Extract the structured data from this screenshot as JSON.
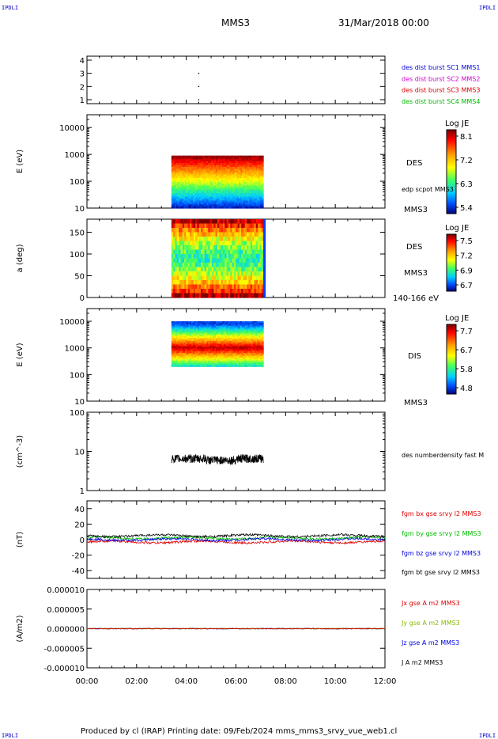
{
  "header": {
    "corner_left": "IPDLI",
    "corner_right": "IPDLI",
    "mission": "MMS3",
    "datetime": "31/Mar/2018 00:00"
  },
  "footer": {
    "text": "Produced by cl (IRAP)   Printing date: 09/Feb/2024   mms_mms3_srvy_vue_web1.cl",
    "corner_left": "IPDLI",
    "corner_right": "IPDLI"
  },
  "colors": {
    "blue": "#0000dd",
    "magenta": "#cc00cc",
    "red": "#dd0000",
    "green": "#00bb00",
    "black": "#000000"
  },
  "chart_data": [
    {
      "type": "scatter",
      "ylabel": "",
      "yticks": [
        "1",
        "2",
        "3",
        "4"
      ],
      "ylim": [
        0.7,
        4.3
      ],
      "legend": [
        {
          "label": "des dist burst SC1 MMS1",
          "color": "#0000dd"
        },
        {
          "label": "des dist burst SC2 MMS2",
          "color": "#cc00cc"
        },
        {
          "label": "des dist burst SC3 MMS3",
          "color": "#dd0000"
        },
        {
          "label": "des dist burst SC4 MMS4",
          "color": "#00bb00"
        }
      ],
      "points": [
        {
          "x": 4.5,
          "y": 1
        },
        {
          "x": 4.5,
          "y": 2
        },
        {
          "x": 4.5,
          "y": 3
        }
      ]
    },
    {
      "type": "heatmap",
      "ylabel": "E (eV)",
      "yscale": "log",
      "yticks": [
        "10",
        "100",
        "1000",
        "10000"
      ],
      "ylim": [
        10,
        30000
      ],
      "data_x": [
        3.4,
        7.1
      ],
      "data_y": [
        10,
        900
      ],
      "side_label": "DES",
      "side_note": "edp scpot MMS3",
      "side_bottom": "MMS3",
      "colorbar": {
        "title": "Log JE",
        "ticks": [
          "8.1",
          "7.2",
          "6.3",
          "5.4"
        ]
      }
    },
    {
      "type": "heatmap",
      "ylabel": "a (deg)",
      "yticks": [
        "0",
        "50",
        "100",
        "150"
      ],
      "ylim": [
        0,
        180
      ],
      "data_x": [
        3.4,
        7.1
      ],
      "side_label": "DES",
      "side_mid": "MMS3",
      "side_bottom": "140-166 eV",
      "colorbar": {
        "title": "Log JE",
        "ticks": [
          "7.5",
          "7.2",
          "6.9",
          "6.7"
        ]
      }
    },
    {
      "type": "heatmap",
      "ylabel": "E (eV)",
      "yscale": "log",
      "yticks": [
        "10",
        "100",
        "1000",
        "10000"
      ],
      "ylim": [
        10,
        30000
      ],
      "data_x": [
        3.4,
        7.1
      ],
      "data_y": [
        200,
        10000
      ],
      "side_label": "DIS",
      "side_bottom": "MMS3",
      "colorbar": {
        "title": "Log JE",
        "ticks": [
          "7.7",
          "6.7",
          "5.8",
          "4.8"
        ]
      }
    },
    {
      "type": "line",
      "ylabel": "(cm^-3)",
      "yscale": "log",
      "yticks": [
        "1",
        "10",
        "100"
      ],
      "ylim": [
        1,
        100
      ],
      "series": [
        {
          "name": "des numberdensity fast M",
          "color": "#000000",
          "x_range": [
            3.4,
            7.1
          ],
          "level": 6.5
        }
      ]
    },
    {
      "type": "line",
      "ylabel": "(nT)",
      "yticks": [
        "-40",
        "-20",
        "0",
        "20",
        "40"
      ],
      "ylim": [
        -50,
        50
      ],
      "series": [
        {
          "name": "fgm bx gse srvy l2 MMS3",
          "color": "#dd0000",
          "level": -3
        },
        {
          "name": "fgm by gse srvy l2 MMS3",
          "color": "#00bb00",
          "level": 2
        },
        {
          "name": "fgm bz gse srvy l2 MMS3",
          "color": "#0000dd",
          "level": 0
        },
        {
          "name": "fgm bt gse srvy l2 MMS3",
          "color": "#000000",
          "level": 5
        }
      ]
    },
    {
      "type": "line",
      "ylabel": "(A/m2)",
      "yticks": [
        "-0.000010",
        "-0.000005",
        "0.000000",
        "0.000005",
        "0.000010"
      ],
      "ylim": [
        -1e-05,
        1e-05
      ],
      "xlabels": [
        "00:00",
        "02:00",
        "04:00",
        "06:00",
        "08:00",
        "10:00",
        "12:00"
      ],
      "xlim": [
        0,
        12
      ],
      "series": [
        {
          "name": "Jx gse A m2 MMS3",
          "color": "#dd0000",
          "level": 0
        },
        {
          "name": "Jy gse A m2 MMS3",
          "color": "#88bb00",
          "level": 0
        },
        {
          "name": "Jz gse A m2 MMS3",
          "color": "#0000dd",
          "level": 0
        },
        {
          "name": "J A m2 MMS3",
          "color": "#000000",
          "level": 0
        }
      ]
    }
  ]
}
